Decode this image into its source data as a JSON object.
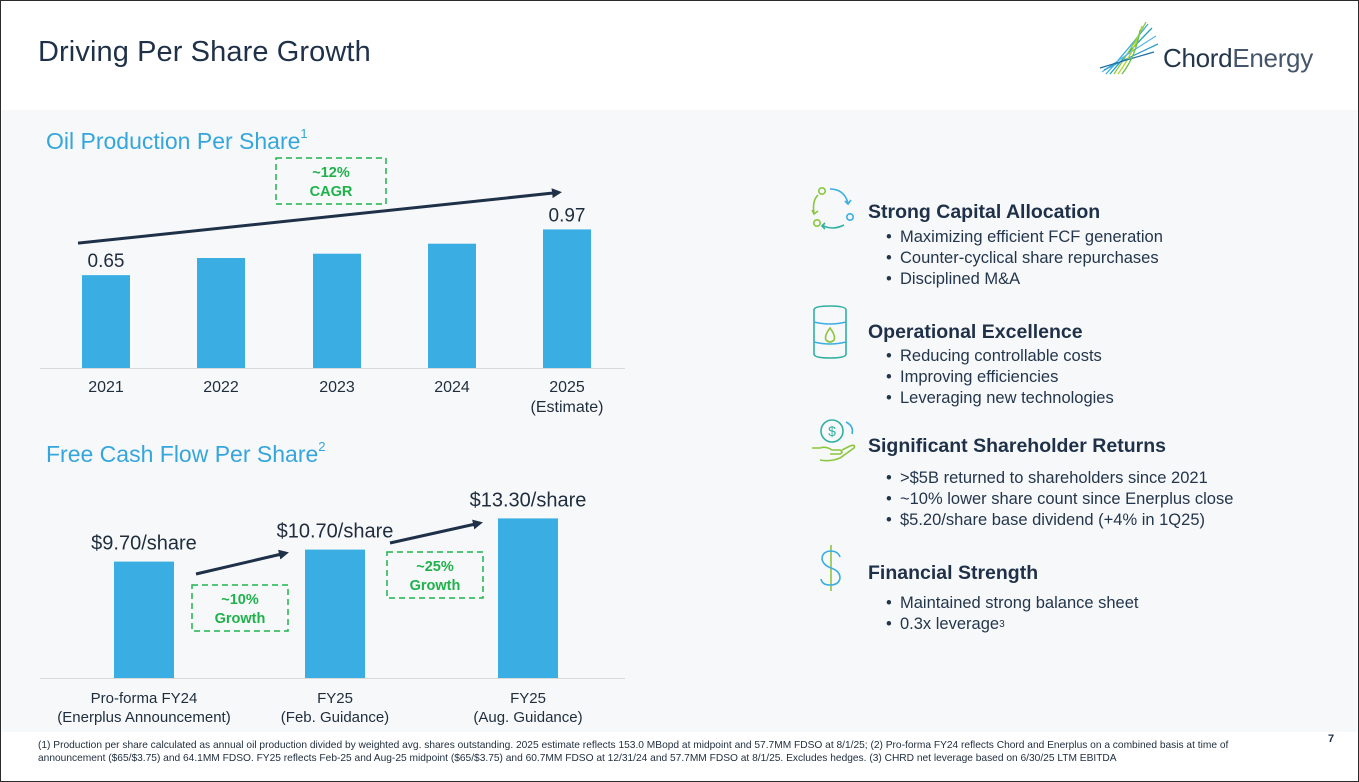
{
  "page": {
    "title": "Driving Per Share Growth",
    "page_number": "7",
    "footnote": "(1) Production per share calculated as annual oil production divided by weighted avg. shares outstanding. 2025 estimate reflects 153.0 MBopd at midpoint and 57.7MM FDSO at 8/1/25; (2) Pro-forma FY24 reflects Chord and Enerplus on a combined basis at time of announcement ($65/$3.75) and 64.1MM FDSO. FY25 reflects Feb-25 and Aug-25 midpoint ($65/$3.75) and 60.7MM FDSO at 12/31/24 and 57.7MM FDSO at 8/1/25. Excludes hedges. (3) CHRD net leverage based on 6/30/25 LTM EBITDA"
  },
  "logo": {
    "name_bold": "Chord",
    "name_light": "Energy"
  },
  "colors": {
    "bar": "#3aaee2",
    "accent_green": "#1fb24b",
    "title_blue": "#35a6dc",
    "arrow": "#1f3148"
  },
  "chart_data": [
    {
      "type": "bar",
      "title": "Oil Production Per Share",
      "title_sup": "1",
      "categories": [
        "2021",
        "2022",
        "2023",
        "2024",
        "2025"
      ],
      "category_sublabels": [
        "",
        "",
        "",
        "",
        "(Estimate)"
      ],
      "values": [
        0.65,
        0.77,
        0.8,
        0.87,
        0.97
      ],
      "data_labels": [
        "0.65",
        "",
        "",
        "",
        "0.97"
      ],
      "annotation": {
        "line1": "~12%",
        "line2": "CAGR"
      },
      "ylim": [
        0,
        1.05
      ]
    },
    {
      "type": "bar",
      "title": "Free Cash Flow Per Share",
      "title_sup": "2",
      "categories": [
        "Pro-forma FY24",
        "FY25",
        "FY25"
      ],
      "category_sublabels": [
        "(Enerplus Announcement)",
        "(Feb. Guidance)",
        "(Aug. Guidance)"
      ],
      "values": [
        9.7,
        10.7,
        13.3
      ],
      "data_labels": [
        "$9.70/share",
        "$10.70/share",
        "$13.30/share"
      ],
      "annotations": [
        {
          "line1": "~10%",
          "line2": "Growth"
        },
        {
          "line1": "~25%",
          "line2": "Growth"
        }
      ],
      "ylim": [
        0,
        14.5
      ]
    }
  ],
  "pillars": [
    {
      "icon": "cycle-arrows-icon",
      "heading": "Strong Capital Allocation",
      "bullets": [
        "Maximizing efficient FCF generation",
        "Counter-cyclical share repurchases",
        "Disciplined M&A"
      ]
    },
    {
      "icon": "oil-barrel-icon",
      "heading": "Operational Excellence",
      "bullets": [
        "Reducing controllable costs",
        "Improving efficiencies",
        "Leveraging new technologies"
      ]
    },
    {
      "icon": "hand-dollar-icon",
      "heading": "Significant Shareholder Returns",
      "bullets": [
        ">$5B returned to shareholders since 2021",
        "~10% lower share count since Enerplus close",
        "$5.20/share base dividend (+4% in 1Q25)"
      ]
    },
    {
      "icon": "dollar-sign-icon",
      "heading": "Financial Strength",
      "bullets": [
        "Maintained strong balance sheet",
        "0.3x leverage"
      ],
      "bullet_sup": "3"
    }
  ]
}
